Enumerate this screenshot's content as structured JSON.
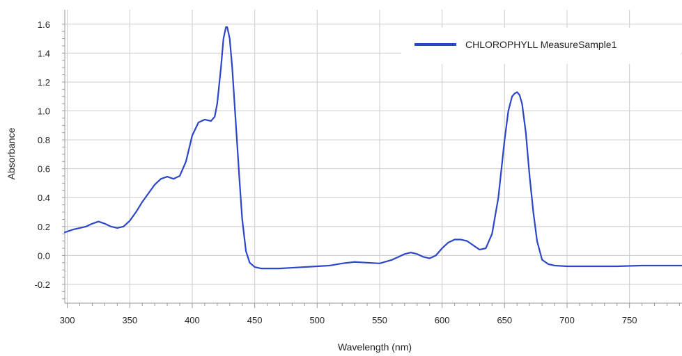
{
  "chart_data": {
    "type": "line",
    "xlabel": "Wavelength (nm)",
    "ylabel": "Absorbance",
    "xlim": [
      298,
      792
    ],
    "ylim": [
      -0.33,
      1.7
    ],
    "xticks": [
      "300",
      "350",
      "400",
      "450",
      "500",
      "550",
      "600",
      "650",
      "700",
      "750"
    ],
    "yticks": [
      "-0.2",
      "0.0",
      "0.2",
      "0.4",
      "0.6",
      "0.8",
      "1.0",
      "1.2",
      "1.4",
      "1.6"
    ],
    "grid": true,
    "legend_position": "top-right",
    "colors": {
      "series": "#2b46c8",
      "grid": "#cccccc",
      "axis": "#999999"
    },
    "series": [
      {
        "name": "CHLOROPHYLL MeasureSample1",
        "x": [
          298,
          305,
          310,
          315,
          320,
          325,
          330,
          335,
          340,
          345,
          350,
          355,
          360,
          365,
          370,
          375,
          380,
          385,
          390,
          395,
          400,
          405,
          410,
          415,
          418,
          420,
          423,
          425,
          427,
          428,
          430,
          432,
          435,
          438,
          440,
          443,
          446,
          450,
          455,
          460,
          470,
          480,
          500,
          510,
          520,
          530,
          540,
          550,
          560,
          570,
          575,
          580,
          585,
          590,
          595,
          600,
          605,
          610,
          615,
          620,
          625,
          630,
          635,
          640,
          645,
          650,
          653,
          656,
          658,
          660,
          662,
          664,
          667,
          670,
          673,
          676,
          680,
          685,
          690,
          700,
          720,
          740,
          760,
          780,
          792
        ],
        "y": [
          0.16,
          0.18,
          0.19,
          0.2,
          0.22,
          0.235,
          0.22,
          0.2,
          0.19,
          0.2,
          0.24,
          0.3,
          0.37,
          0.43,
          0.49,
          0.53,
          0.545,
          0.53,
          0.55,
          0.65,
          0.83,
          0.92,
          0.94,
          0.93,
          0.96,
          1.05,
          1.3,
          1.5,
          1.58,
          1.58,
          1.5,
          1.3,
          0.9,
          0.5,
          0.25,
          0.03,
          -0.05,
          -0.08,
          -0.09,
          -0.09,
          -0.09,
          -0.085,
          -0.075,
          -0.07,
          -0.055,
          -0.045,
          -0.05,
          -0.055,
          -0.03,
          0.01,
          0.02,
          0.01,
          -0.01,
          -0.02,
          0.0,
          0.05,
          0.09,
          0.11,
          0.11,
          0.1,
          0.07,
          0.04,
          0.05,
          0.15,
          0.4,
          0.8,
          1.0,
          1.1,
          1.12,
          1.13,
          1.11,
          1.05,
          0.85,
          0.55,
          0.3,
          0.1,
          -0.03,
          -0.06,
          -0.07,
          -0.075,
          -0.075,
          -0.075,
          -0.07,
          -0.07,
          -0.07
        ]
      }
    ]
  }
}
